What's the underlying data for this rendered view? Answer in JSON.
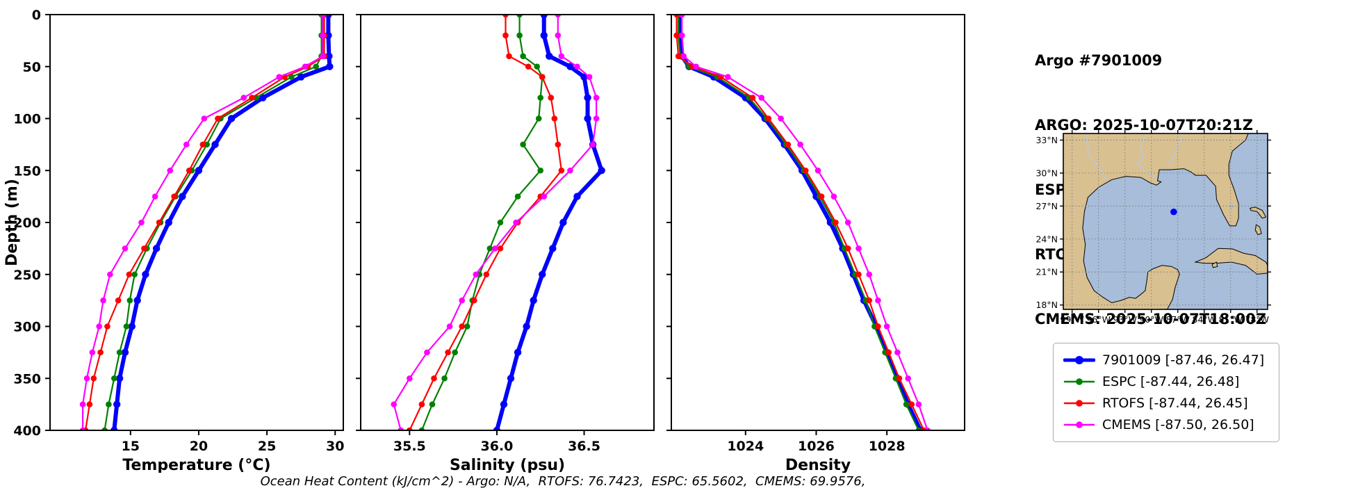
{
  "title_block": {
    "lines": [
      "Argo #7901009",
      "ARGO: 2025-10-07T20:21Z",
      "ESPC : 2025-10-07T21:00Z",
      "RTOFS: 2025-10-07T18:00Z",
      "CMEMS: 2025-10-07T18:00Z"
    ]
  },
  "footer_note": "Ocean Heat Content (kJ/cm^2) - Argo: N/A,  RTOFS: 76.7423,  ESPC: 65.5602,  CMEMS: 69.9576,",
  "legend": {
    "items": [
      {
        "label": "7901009 [-87.46, 26.47]",
        "color": "#0000ff",
        "thick": true
      },
      {
        "label": "ESPC [-87.44, 26.48]",
        "color": "#008000",
        "thick": false
      },
      {
        "label": "RTOFS [-87.44, 26.45]",
        "color": "#ff0000",
        "thick": false
      },
      {
        "label": "CMEMS [-87.50, 26.50]",
        "color": "#ff00ff",
        "thick": false
      }
    ]
  },
  "map": {
    "extent": {
      "lon_min": -100,
      "lon_max": -76.8,
      "lat_min": 17.6,
      "lat_max": 33.6
    },
    "lat_values": [
      33,
      30,
      27,
      24,
      21,
      18
    ],
    "lat_labels": [
      "33°N",
      "30°N",
      "27°N",
      "24°N",
      "21°N",
      "18°N"
    ],
    "lon_values": [
      -99,
      -96,
      -93,
      -90,
      -87,
      -84,
      -81,
      -78
    ],
    "lon_labels": [
      "99°W",
      "96°W",
      "93°W",
      "90°W",
      "87°W",
      "84°W",
      "81°W",
      "78°W"
    ],
    "marker": {
      "lon": -87.46,
      "lat": 26.47,
      "color": "#0000ff"
    },
    "land_color": "#d9c091",
    "water_color": "#a7bdd9"
  },
  "depth_axis": {
    "label": "Depth (m)",
    "range": [
      0,
      400
    ],
    "ticks": [
      0,
      50,
      100,
      150,
      200,
      250,
      300,
      350,
      400
    ]
  },
  "chart_data": [
    {
      "type": "line",
      "xlabel": "Temperature (°C)",
      "ylabel": "Depth (m)",
      "xlim": [
        9.1,
        30.6
      ],
      "ylim": [
        0,
        400
      ],
      "y_inverted": true,
      "xtick_values": [
        15,
        20,
        25,
        30
      ],
      "xtick_labels": [
        "15",
        "20",
        "25",
        "30"
      ],
      "depths": [
        0,
        20,
        40,
        50,
        60,
        80,
        100,
        125,
        150,
        175,
        200,
        225,
        250,
        275,
        300,
        325,
        350,
        375,
        400
      ],
      "series": [
        {
          "name": "7901009",
          "color": "#0000ff",
          "values": [
            29.5,
            29.5,
            29.55,
            29.6,
            27.5,
            24.7,
            22.4,
            21.2,
            20.0,
            18.8,
            17.8,
            16.9,
            16.1,
            15.5,
            15.1,
            14.6,
            14.2,
            14.0,
            13.8
          ]
        },
        {
          "name": "ESPC",
          "color": "#008000",
          "values": [
            29.0,
            29.0,
            29.0,
            28.6,
            26.8,
            24.2,
            21.6,
            20.6,
            19.5,
            18.3,
            17.2,
            16.2,
            15.3,
            14.95,
            14.7,
            14.2,
            13.8,
            13.4,
            13.1
          ]
        },
        {
          "name": "RTOFS",
          "color": "#ff0000",
          "values": [
            29.2,
            29.2,
            29.2,
            28.0,
            26.3,
            23.9,
            21.4,
            20.3,
            19.3,
            18.2,
            17.1,
            16.0,
            14.9,
            14.1,
            13.3,
            12.8,
            12.3,
            12.0,
            11.7
          ]
        },
        {
          "name": "CMEMS",
          "color": "#ff00ff",
          "values": [
            29.1,
            29.1,
            29.1,
            27.8,
            25.9,
            23.3,
            20.4,
            19.1,
            17.9,
            16.8,
            15.8,
            14.6,
            13.5,
            13.0,
            12.7,
            12.2,
            11.8,
            11.5,
            11.5
          ]
        }
      ]
    },
    {
      "type": "line",
      "xlabel": "Salinity (psu)",
      "ylabel": "Depth (m)",
      "xlim": [
        35.22,
        36.9
      ],
      "ylim": [
        0,
        400
      ],
      "y_inverted": true,
      "xtick_values": [
        35.5,
        36.0,
        36.5
      ],
      "xtick_labels": [
        "35.5",
        "36.0",
        "36.5"
      ],
      "depths": [
        0,
        20,
        40,
        50,
        60,
        80,
        100,
        125,
        150,
        175,
        200,
        225,
        250,
        275,
        300,
        325,
        350,
        375,
        400
      ],
      "series": [
        {
          "name": "7901009",
          "color": "#0000ff",
          "values": [
            36.27,
            36.27,
            36.3,
            36.42,
            36.5,
            36.52,
            36.52,
            36.55,
            36.6,
            36.46,
            36.38,
            36.32,
            36.26,
            36.21,
            36.17,
            36.12,
            36.08,
            36.04,
            36.0
          ]
        },
        {
          "name": "ESPC",
          "color": "#008000",
          "values": [
            36.13,
            36.13,
            36.15,
            36.23,
            36.26,
            36.25,
            36.24,
            36.15,
            36.25,
            36.12,
            36.02,
            35.96,
            35.9,
            35.86,
            35.83,
            35.76,
            35.7,
            35.63,
            35.57
          ]
        },
        {
          "name": "RTOFS",
          "color": "#ff0000",
          "values": [
            36.05,
            36.05,
            36.07,
            36.18,
            36.26,
            36.31,
            36.33,
            36.35,
            36.37,
            36.25,
            36.12,
            36.02,
            35.94,
            35.87,
            35.8,
            35.72,
            35.64,
            35.57,
            35.5
          ]
        },
        {
          "name": "CMEMS",
          "color": "#ff00ff",
          "values": [
            36.35,
            36.35,
            36.37,
            36.46,
            36.53,
            36.57,
            36.57,
            36.55,
            36.42,
            36.27,
            36.11,
            35.99,
            35.88,
            35.8,
            35.73,
            35.6,
            35.5,
            35.41,
            35.45
          ]
        }
      ]
    },
    {
      "type": "line",
      "xlabel": "Density",
      "ylabel": "Depth (m)",
      "xlim": [
        1021.9,
        1030.2
      ],
      "ylim": [
        0,
        400
      ],
      "y_inverted": true,
      "xtick_values": [
        1024,
        1026,
        1028
      ],
      "xtick_labels": [
        "1024",
        "1026",
        "1028"
      ],
      "depths": [
        0,
        20,
        40,
        50,
        60,
        80,
        100,
        125,
        150,
        175,
        200,
        225,
        250,
        275,
        300,
        325,
        350,
        375,
        400
      ],
      "series": [
        {
          "name": "7901009",
          "color": "#0000ff",
          "values": [
            1022.15,
            1022.15,
            1022.2,
            1022.4,
            1023.1,
            1024.0,
            1024.55,
            1025.1,
            1025.6,
            1026.0,
            1026.4,
            1026.75,
            1027.05,
            1027.35,
            1027.7,
            1028.0,
            1028.3,
            1028.6,
            1028.95
          ]
        },
        {
          "name": "ESPC",
          "color": "#008000",
          "values": [
            1022.1,
            1022.1,
            1022.15,
            1022.4,
            1023.2,
            1024.1,
            1024.6,
            1025.15,
            1025.65,
            1026.1,
            1026.5,
            1026.8,
            1027.1,
            1027.4,
            1027.65,
            1027.95,
            1028.25,
            1028.55,
            1028.9
          ]
        },
        {
          "name": "RTOFS",
          "color": "#ff0000",
          "values": [
            1022.05,
            1022.05,
            1022.1,
            1022.5,
            1023.3,
            1024.2,
            1024.65,
            1025.2,
            1025.7,
            1026.15,
            1026.55,
            1026.9,
            1027.2,
            1027.5,
            1027.75,
            1028.05,
            1028.35,
            1028.7,
            1029.05
          ]
        },
        {
          "name": "CMEMS",
          "color": "#ff00ff",
          "values": [
            1022.2,
            1022.2,
            1022.25,
            1022.6,
            1023.5,
            1024.45,
            1025.0,
            1025.55,
            1026.05,
            1026.5,
            1026.9,
            1027.2,
            1027.5,
            1027.75,
            1028.0,
            1028.3,
            1028.6,
            1028.9,
            1029.15
          ]
        }
      ]
    }
  ]
}
